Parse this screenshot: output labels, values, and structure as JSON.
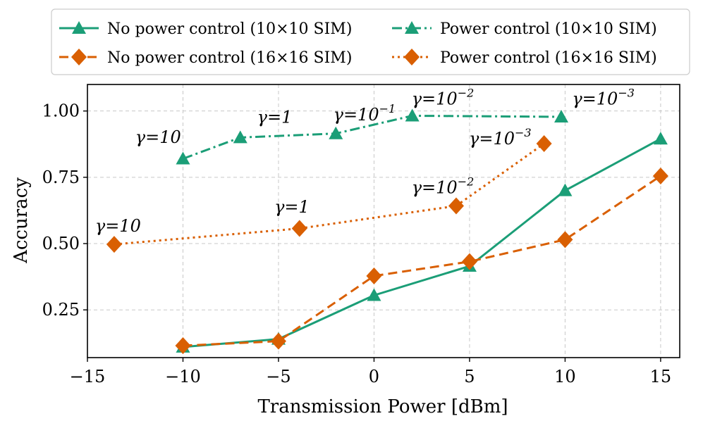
{
  "chart_data": {
    "type": "line",
    "title": "",
    "xlabel": "Transmission Power [dBm]",
    "ylabel": "Accuracy",
    "xlim": [
      -15,
      16
    ],
    "ylim": [
      0.07,
      1.1
    ],
    "xticks": [
      -15,
      -10,
      -5,
      0,
      5,
      10,
      15
    ],
    "xtick_labels": [
      "−15",
      "−10",
      "−5",
      "0",
      "5",
      "10",
      "15"
    ],
    "yticks": [
      0.25,
      0.5,
      0.75,
      1.0
    ],
    "ytick_labels": [
      "0.25",
      "0.50",
      "0.75",
      "1.00"
    ],
    "grid": true,
    "legend_position": "top",
    "series": [
      {
        "name": "No power control (10×10 SIM)",
        "color": "#1b9e77",
        "marker": "triangle",
        "dash": "solid",
        "x": [
          -10,
          -5,
          0,
          5,
          10,
          15
        ],
        "y": [
          0.11,
          0.14,
          0.305,
          0.415,
          0.7,
          0.895
        ]
      },
      {
        "name": "No power control (16×16 SIM)",
        "color": "#d95f02",
        "marker": "diamond",
        "dash": "dashed",
        "x": [
          -10,
          -5,
          0,
          5,
          10,
          15
        ],
        "y": [
          0.115,
          0.132,
          0.378,
          0.432,
          0.515,
          0.755
        ]
      },
      {
        "name": "Power control (10×10 SIM)",
        "color": "#1b9e77",
        "marker": "triangle",
        "dash": "dashdot",
        "x": [
          -10,
          -7,
          -2,
          2,
          9.8
        ],
        "y": [
          0.82,
          0.9,
          0.915,
          0.982,
          0.978
        ]
      },
      {
        "name": "Power control (16×16 SIM)",
        "color": "#d95f02",
        "marker": "diamond",
        "dash": "dotted",
        "x": [
          -13.6,
          -3.9,
          4.3,
          8.9
        ],
        "y": [
          0.497,
          0.557,
          0.642,
          0.877
        ]
      }
    ],
    "annotations": [
      {
        "base": "γ=10",
        "exp": "",
        "x": -11.3,
        "y": 0.88
      },
      {
        "base": "γ=1",
        "exp": "",
        "x": -5.2,
        "y": 0.955
      },
      {
        "base": "γ=10",
        "exp": "−1",
        "x": -0.5,
        "y": 0.965
      },
      {
        "base": "γ=10",
        "exp": "−2",
        "x": 3.6,
        "y": 1.025
      },
      {
        "base": "γ=10",
        "exp": "−3",
        "x": 12.0,
        "y": 1.025
      },
      {
        "base": "γ=10",
        "exp": "−3",
        "x": 6.6,
        "y": 0.875
      },
      {
        "base": "γ=10",
        "exp": "−2",
        "x": 3.6,
        "y": 0.69
      },
      {
        "base": "γ=1",
        "exp": "",
        "x": -4.3,
        "y": 0.617
      },
      {
        "base": "γ=10",
        "exp": "",
        "x": -13.4,
        "y": 0.545
      }
    ]
  }
}
